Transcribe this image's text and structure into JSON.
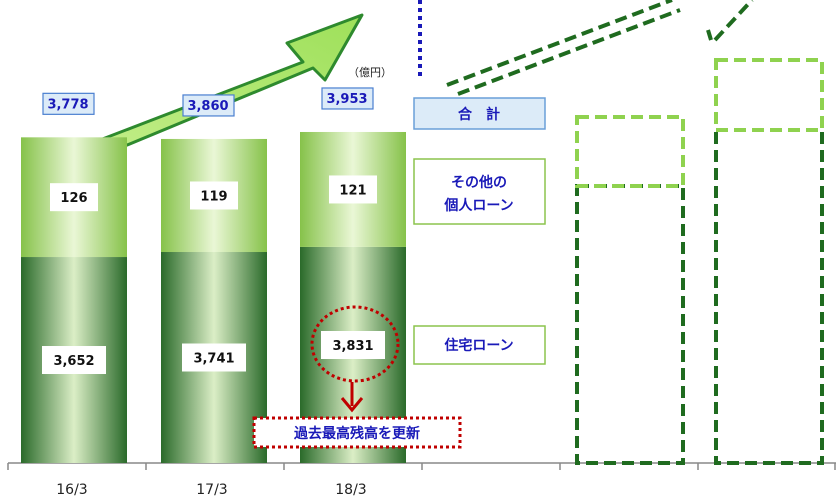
{
  "chart_data": {
    "type": "bar",
    "stacked": true,
    "unit": "（億円）",
    "categories": [
      "16/3",
      "17/3",
      "18/3"
    ],
    "series": [
      {
        "name": "住宅ローン",
        "values": [
          3652,
          3741,
          3831
        ],
        "labels": [
          "3,652",
          "3,741",
          "3,831"
        ]
      },
      {
        "name": "その他の個人ローン",
        "values": [
          126,
          119,
          121
        ],
        "labels": [
          "126",
          "119",
          "121"
        ]
      }
    ],
    "totals": [
      3778,
      3860,
      3953
    ],
    "total_labels": [
      "3,778",
      "3,860",
      "3,953"
    ],
    "legend": {
      "total": "合　計",
      "other_line1": "その他の",
      "other_line2": "個人ローン",
      "housing": "住宅ローン"
    },
    "annotation": "過去最高残高を更新",
    "projection_bars": 2,
    "colors": {
      "housing_dark": "#1e5b1e",
      "housing_light": "#dcefc8",
      "other_dark": "#8cc44d",
      "other_light": "#e6f5cf",
      "total_box": "#dcebf8",
      "total_text": "#1a1ab8",
      "legend_text": "#1a1ab8",
      "arrow": "#9ee05a",
      "annotation": "#c00000",
      "projection_dark": "#1f6b1f",
      "projection_light": "#8fd24f"
    }
  }
}
